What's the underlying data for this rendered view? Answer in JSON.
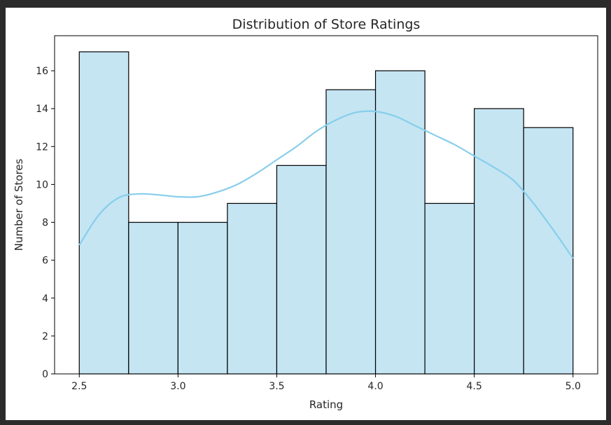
{
  "chart_data": {
    "type": "bar",
    "subtype": "histogram-with-kde",
    "title": "Distribution of Store Ratings",
    "xlabel": "Rating",
    "ylabel": "Number of Stores",
    "xlim": [
      2.375,
      5.125
    ],
    "ylim": [
      0,
      17.85
    ],
    "xticks": [
      "2.5",
      "3.0",
      "3.5",
      "4.0",
      "4.5",
      "5.0"
    ],
    "yticks": [
      "0",
      "2",
      "4",
      "6",
      "8",
      "10",
      "12",
      "14",
      "16"
    ],
    "bin_edges": [
      2.5,
      2.75,
      3.0,
      3.25,
      3.5,
      3.75,
      4.0,
      4.25,
      4.5,
      4.75,
      5.0
    ],
    "values": [
      17,
      8,
      8,
      9,
      11,
      15,
      16,
      9,
      14,
      13
    ],
    "kde": {
      "x": [
        2.5,
        2.6,
        2.7,
        2.8,
        2.9,
        3.0,
        3.1,
        3.2,
        3.3,
        3.4,
        3.5,
        3.6,
        3.7,
        3.8,
        3.9,
        4.0,
        4.1,
        4.2,
        4.3,
        4.4,
        4.5,
        4.6,
        4.7,
        4.8,
        4.9,
        5.0
      ],
      "y": [
        6.8,
        8.4,
        9.3,
        9.5,
        9.45,
        9.35,
        9.35,
        9.6,
        10.0,
        10.6,
        11.3,
        12.0,
        12.8,
        13.4,
        13.8,
        13.85,
        13.6,
        13.1,
        12.6,
        12.1,
        11.5,
        10.9,
        10.2,
        9.0,
        7.6,
        6.1
      ]
    },
    "grid": false,
    "legend": "none",
    "colors": {
      "bar_fill": "#c5e5f3",
      "bar_edge": "#000000",
      "kde_line": "#87ceeb",
      "axis": "#000000",
      "text": "#262626"
    }
  }
}
